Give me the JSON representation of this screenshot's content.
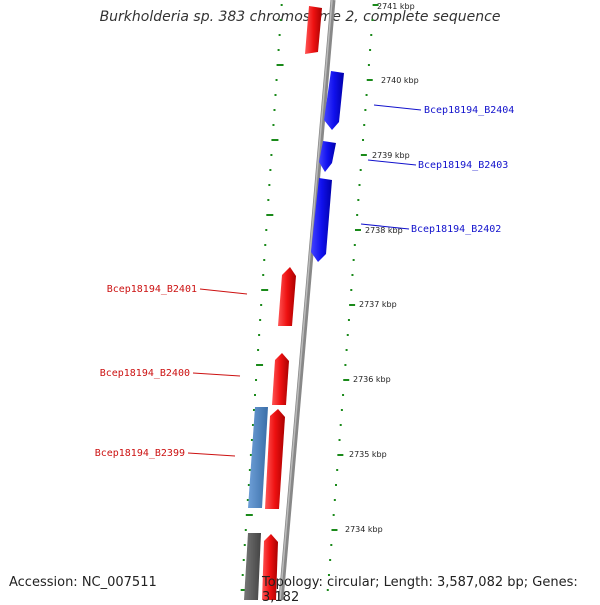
{
  "title": "Burkholderia sp. 383 chromosome 2, complete sequence",
  "footer": {
    "accession": "Accession: NC_007511",
    "topology": "Topology: circular; Length: 3,587,082 bp; Genes: 3,182"
  },
  "colors": {
    "forward_gene": "#ee1111",
    "reverse_gene": "#1111ee",
    "other_gene": "#4a82c0",
    "backbone": "#888888",
    "tick": "#1a8a1a"
  },
  "scale_labels": [
    "2741 kbp",
    "2740 kbp",
    "2739 kbp",
    "2738 kbp",
    "2737 kbp",
    "2736 kbp",
    "2735 kbp",
    "2734 kbp"
  ],
  "genes": [
    {
      "label": "Bcep18194_B2404",
      "strand": "reverse"
    },
    {
      "label": "Bcep18194_B2403",
      "strand": "reverse"
    },
    {
      "label": "Bcep18194_B2402",
      "strand": "reverse"
    },
    {
      "label": "Bcep18194_B2401",
      "strand": "forward"
    },
    {
      "label": "Bcep18194_B2400",
      "strand": "forward"
    },
    {
      "label": "Bcep18194_B2399",
      "strand": "forward"
    }
  ]
}
